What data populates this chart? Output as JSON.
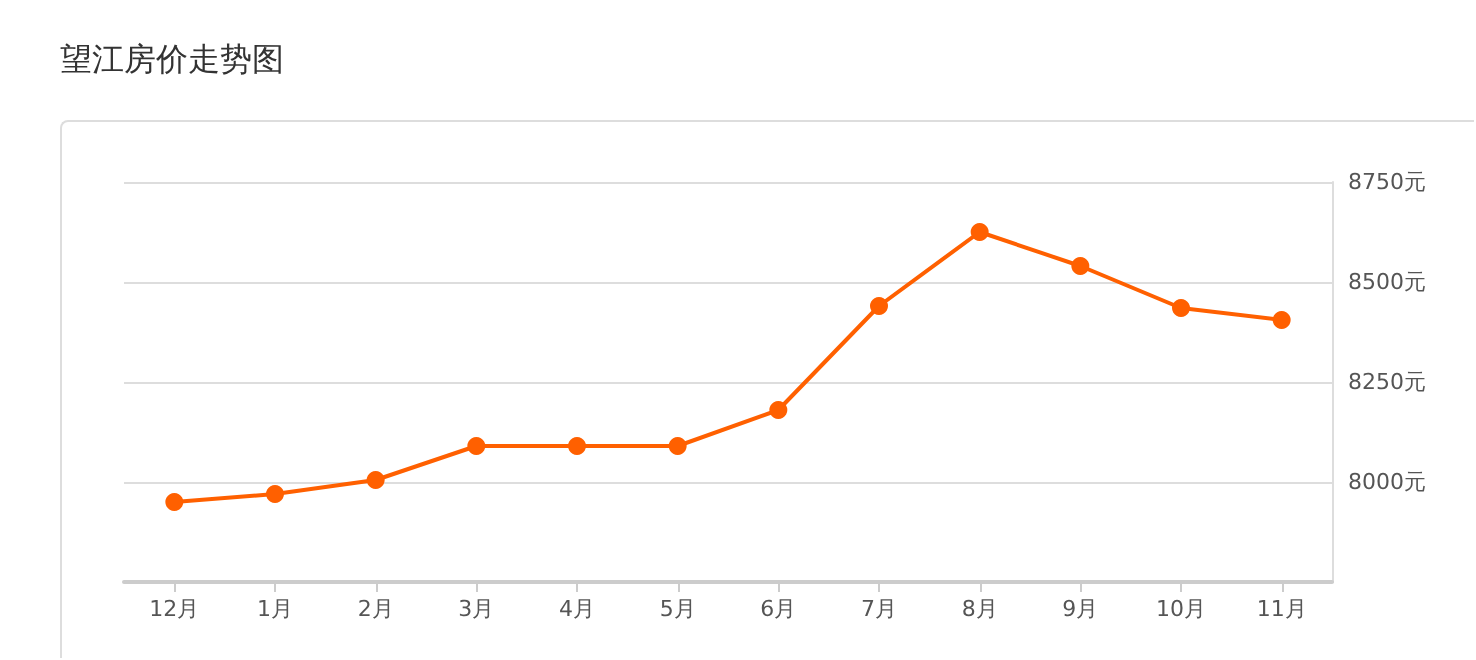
{
  "chart_data": {
    "type": "line",
    "title": "望江房价走势图",
    "categories": [
      "12月",
      "1月",
      "2月",
      "3月",
      "4月",
      "5月",
      "6月",
      "7月",
      "8月",
      "9月",
      "10月",
      "11月"
    ],
    "series": [
      {
        "color": "#ff6000",
        "values": [
          7950,
          7970,
          8005,
          8090,
          8090,
          8090,
          8180,
          8440,
          8625,
          8540,
          8435,
          8405
        ]
      }
    ],
    "ylim": [
      7750,
      8750
    ],
    "yticks": [
      {
        "value": 7750,
        "label": null
      },
      {
        "value": 8000,
        "label": "8000元"
      },
      {
        "value": 8250,
        "label": "8250元"
      },
      {
        "value": 8500,
        "label": "8500元"
      },
      {
        "value": 8750,
        "label": "8750元"
      }
    ],
    "grid": "y",
    "marker": "circle",
    "line_style": "solid"
  }
}
